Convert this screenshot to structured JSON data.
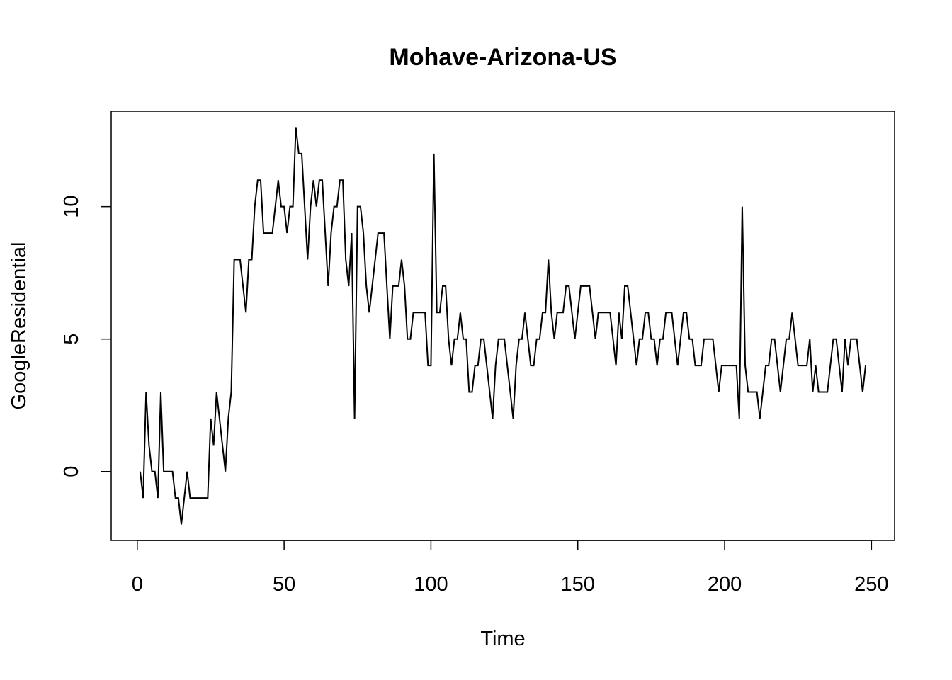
{
  "chart_data": {
    "type": "line",
    "title": "Mohave-Arizona-US",
    "xlabel": "Time",
    "ylabel": "GoogleResidential",
    "color": "#000000",
    "x": [
      1,
      2,
      3,
      4,
      5,
      6,
      7,
      8,
      9,
      10,
      11,
      12,
      13,
      14,
      15,
      16,
      17,
      18,
      19,
      20,
      21,
      22,
      23,
      24,
      25,
      26,
      27,
      28,
      29,
      30,
      31,
      32,
      33,
      34,
      35,
      36,
      37,
      38,
      39,
      40,
      41,
      42,
      43,
      44,
      45,
      46,
      47,
      48,
      49,
      50,
      51,
      52,
      53,
      54,
      55,
      56,
      57,
      58,
      59,
      60,
      61,
      62,
      63,
      64,
      65,
      66,
      67,
      68,
      69,
      70,
      71,
      72,
      73,
      74,
      75,
      76,
      77,
      78,
      79,
      80,
      81,
      82,
      83,
      84,
      85,
      86,
      87,
      88,
      89,
      90,
      91,
      92,
      93,
      94,
      95,
      96,
      97,
      98,
      99,
      100,
      101,
      102,
      103,
      104,
      105,
      106,
      107,
      108,
      109,
      110,
      111,
      112,
      113,
      114,
      115,
      116,
      117,
      118,
      119,
      120,
      121,
      122,
      123,
      124,
      125,
      126,
      127,
      128,
      129,
      130,
      131,
      132,
      133,
      134,
      135,
      136,
      137,
      138,
      139,
      140,
      141,
      142,
      143,
      144,
      145,
      146,
      147,
      148,
      149,
      150,
      151,
      152,
      153,
      154,
      155,
      156,
      157,
      158,
      159,
      160,
      161,
      162,
      163,
      164,
      165,
      166,
      167,
      168,
      169,
      170,
      171,
      172,
      173,
      174,
      175,
      176,
      177,
      178,
      179,
      180,
      181,
      182,
      183,
      184,
      185,
      186,
      187,
      188,
      189,
      190,
      191,
      192,
      193,
      194,
      195,
      196,
      197,
      198,
      199,
      200,
      201,
      202,
      203,
      204,
      205,
      206,
      207,
      208,
      209,
      210,
      211,
      212,
      213,
      214,
      215,
      216,
      217,
      218,
      219,
      220,
      221,
      222,
      223,
      224,
      225,
      226,
      227,
      228,
      229,
      230,
      231,
      232,
      233,
      234,
      235,
      236,
      237,
      238,
      239,
      240,
      241,
      242,
      243,
      244,
      245,
      246,
      247,
      248
    ],
    "values": [
      0,
      -1,
      3,
      1,
      0,
      0,
      -1,
      3,
      0,
      0,
      0,
      0,
      -1,
      -1,
      -2,
      -1,
      0,
      -1,
      -1,
      -1,
      -1,
      -1,
      -1,
      -1,
      2,
      1,
      3,
      2,
      1,
      0,
      2,
      3,
      8,
      8,
      8,
      7,
      6,
      8,
      8,
      10,
      11,
      11,
      9,
      9,
      9,
      9,
      10,
      11,
      10,
      10,
      9,
      10,
      10,
      13,
      12,
      12,
      10,
      8,
      10,
      11,
      10,
      11,
      11,
      9,
      7,
      9,
      10,
      10,
      11,
      11,
      8,
      7,
      9,
      2,
      10,
      10,
      9,
      7,
      6,
      7,
      8,
      9,
      9,
      9,
      7,
      5,
      7,
      7,
      7,
      8,
      7,
      5,
      5,
      6,
      6,
      6,
      6,
      6,
      4,
      4,
      12,
      6,
      6,
      7,
      7,
      5,
      4,
      5,
      5,
      6,
      5,
      5,
      3,
      3,
      4,
      4,
      5,
      5,
      4,
      3,
      2,
      4,
      5,
      5,
      5,
      4,
      3,
      2,
      4,
      5,
      5,
      6,
      5,
      4,
      4,
      5,
      5,
      6,
      6,
      8,
      6,
      5,
      6,
      6,
      6,
      7,
      7,
      6,
      5,
      6,
      7,
      7,
      7,
      7,
      6,
      5,
      6,
      6,
      6,
      6,
      6,
      5,
      4,
      6,
      5,
      7,
      7,
      6,
      5,
      4,
      5,
      5,
      6,
      6,
      5,
      5,
      4,
      5,
      5,
      6,
      6,
      6,
      5,
      4,
      5,
      6,
      6,
      5,
      5,
      4,
      4,
      4,
      5,
      5,
      5,
      5,
      4,
      3,
      4,
      4,
      4,
      4,
      4,
      4,
      2,
      10,
      4,
      3,
      3,
      3,
      3,
      2,
      3,
      4,
      4,
      5,
      5,
      4,
      3,
      4,
      5,
      5,
      6,
      5,
      4,
      4,
      4,
      4,
      5,
      3,
      4,
      3,
      3,
      3,
      3,
      4,
      5,
      5,
      4,
      3,
      5,
      4,
      5,
      5,
      5,
      4,
      3,
      4
    ],
    "xlim": [
      -8.88,
      257.88
    ],
    "ylim": [
      -2.6,
      13.6
    ],
    "xticks": [
      0,
      50,
      100,
      150,
      200,
      250
    ],
    "yticks": [
      0,
      5,
      10
    ]
  }
}
